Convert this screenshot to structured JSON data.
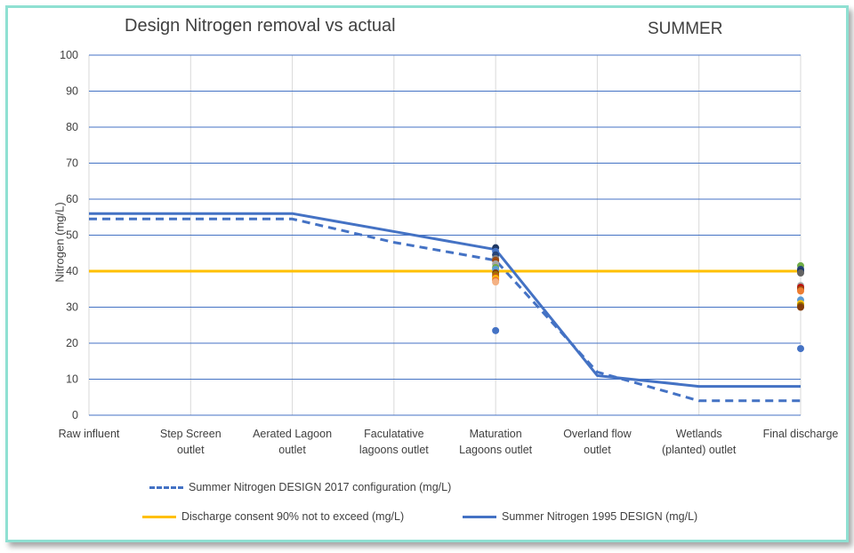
{
  "chart_data": {
    "type": "line",
    "title": "Design Nitrogen removal vs actual",
    "subtitle": "SUMMER",
    "xlabel": "",
    "ylabel": "Nitrogen (mg/L)",
    "ylim": [
      0,
      100
    ],
    "yticks": [
      0,
      10,
      20,
      30,
      40,
      50,
      60,
      70,
      80,
      90,
      100
    ],
    "grid": true,
    "legend_position": "bottom",
    "categories": [
      [
        "Raw influent"
      ],
      [
        "Step Screen",
        "outlet"
      ],
      [
        "Aerated Lagoon",
        "outlet"
      ],
      [
        "Faculatative",
        "lagoons outlet"
      ],
      [
        "Maturation",
        "Lagoons outlet"
      ],
      [
        "Overland flow",
        "outlet"
      ],
      [
        "Wetlands",
        "(planted) outlet"
      ],
      [
        "Final discharge"
      ]
    ],
    "series": [
      {
        "name": "Summer Nitrogen DESIGN 2017 configuration (mg/L)",
        "color": "#4472c4",
        "style": "dashed",
        "values": [
          54.5,
          54.5,
          54.5,
          48,
          43,
          12,
          4,
          4
        ]
      },
      {
        "name": "Discharge consent 90% not to exceed (mg/L)",
        "color": "#ffc000",
        "style": "solid",
        "values": [
          40,
          40,
          40,
          40,
          40,
          40,
          40,
          40
        ]
      },
      {
        "name": "Summer Nitrogen 1995 DESIGN (mg/L)",
        "color": "#4472c4",
        "style": "solid",
        "values": [
          56,
          56,
          56,
          51,
          46,
          11,
          8,
          8
        ]
      }
    ],
    "actual_points": [
      {
        "category": 4,
        "values": [
          {
            "y": 46.5,
            "color": "#1f3864"
          },
          {
            "y": 45.5,
            "color": "#4472c4"
          },
          {
            "y": 44.5,
            "color": "#264478"
          },
          {
            "y": 43.5,
            "color": "#7f7f7f"
          },
          {
            "y": 43,
            "color": "#9e480e"
          },
          {
            "y": 42,
            "color": "#a5a5a5"
          },
          {
            "y": 41,
            "color": "#70ad47"
          },
          {
            "y": 40.5,
            "color": "#5b9bd5"
          },
          {
            "y": 39.5,
            "color": "#843c0c"
          },
          {
            "y": 39,
            "color": "#997300"
          },
          {
            "y": 38.5,
            "color": "#c55a11"
          },
          {
            "y": 38,
            "color": "#ffc000"
          },
          {
            "y": 37.5,
            "color": "#ed7d31"
          },
          {
            "y": 37,
            "color": "#f4b183"
          },
          {
            "y": 23.5,
            "color": "#4472c4"
          }
        ]
      },
      {
        "category": 7,
        "values": [
          {
            "y": 41.5,
            "color": "#70ad47"
          },
          {
            "y": 40.5,
            "color": "#264478"
          },
          {
            "y": 40,
            "color": "#1f3864"
          },
          {
            "y": 39.5,
            "color": "#636363"
          },
          {
            "y": 36,
            "color": "#a5a5a5"
          },
          {
            "y": 35.5,
            "color": "#c00000"
          },
          {
            "y": 35,
            "color": "#9e480e"
          },
          {
            "y": 34.5,
            "color": "#ed7d31"
          },
          {
            "y": 32,
            "color": "#5b9bd5"
          },
          {
            "y": 31,
            "color": "#ffc000"
          },
          {
            "y": 30.5,
            "color": "#997300"
          },
          {
            "y": 30,
            "color": "#843c0c"
          },
          {
            "y": 18.5,
            "color": "#4472c4"
          }
        ]
      }
    ]
  }
}
